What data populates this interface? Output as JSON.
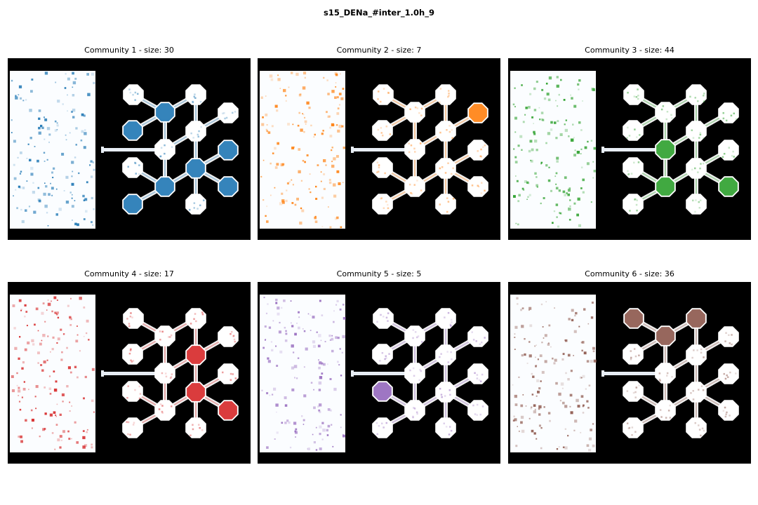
{
  "figure": {
    "suptitle": "s15_DENa_#inter_1.0h_9"
  },
  "chart_data": {
    "type": "heatmap",
    "title": "s15_DENa_#inter_1.0h_9",
    "grid": false,
    "panels": [
      {
        "title": "Community 1 - size: 30",
        "community": 1,
        "size": 30,
        "color": "#1f77b4",
        "highlighted_nodes": [
          "n2",
          "n5",
          "n7",
          "n10",
          "n11",
          "n12",
          "n13"
        ]
      },
      {
        "title": "Community 2 - size: 7",
        "community": 2,
        "size": 7,
        "color": "#ff7f0e",
        "highlighted_nodes": [
          "n4"
        ]
      },
      {
        "title": "Community 3 - size: 44",
        "community": 3,
        "size": 44,
        "color": "#2ca02c",
        "highlighted_nodes": [
          "n8",
          "n11",
          "n12"
        ]
      },
      {
        "title": "Community 4 - size: 17",
        "community": 4,
        "size": 17,
        "color": "#d62728",
        "highlighted_nodes": [
          "n6",
          "n10",
          "n12"
        ]
      },
      {
        "title": "Community 5 - size: 5",
        "community": 5,
        "size": 5,
        "color": "#9467bd",
        "highlighted_nodes": [
          "n9"
        ]
      },
      {
        "title": "Community 6 - size: 36",
        "community": 6,
        "size": 36,
        "color": "#8c564b",
        "highlighted_nodes": [
          "n1",
          "n2",
          "n3"
        ]
      }
    ]
  }
}
